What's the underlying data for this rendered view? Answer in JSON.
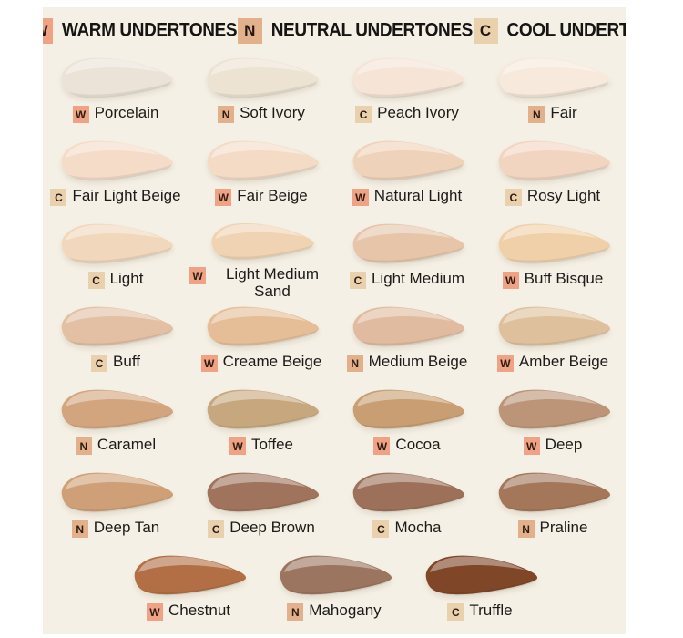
{
  "page": {
    "background": "#ffffff",
    "panel_background": "#f5f0e5",
    "text_color": "#1c1b19"
  },
  "badge_colors": {
    "W": "#f0a285",
    "N": "#e3b08c",
    "C": "#ead1ad"
  },
  "header": {
    "items": [
      {
        "badge": "W",
        "label": "WARM UNDERTONES"
      },
      {
        "badge": "N",
        "label": "NEUTRAL UNDERTONES"
      },
      {
        "badge": "C",
        "label": "COOL UNDERTONES"
      }
    ]
  },
  "rows": [
    {
      "cells": [
        {
          "badge": "W",
          "name": "Porcelain",
          "color": "#ebe3d8"
        },
        {
          "badge": "N",
          "name": "Soft Ivory",
          "color": "#ece3d2"
        },
        {
          "badge": "C",
          "name": "Peach Ivory",
          "color": "#f6e4d6"
        },
        {
          "badge": "N",
          "name": "Fair",
          "color": "#f7e9db"
        }
      ]
    },
    {
      "cells": [
        {
          "badge": "C",
          "name": "Fair Light Beige",
          "color": "#f5dcc8"
        },
        {
          "badge": "W",
          "name": "Fair Beige",
          "color": "#f3dbc5"
        },
        {
          "badge": "W",
          "name": "Natural Light",
          "color": "#efd2ba"
        },
        {
          "badge": "C",
          "name": "Rosy Light",
          "color": "#f1d5c1"
        }
      ]
    },
    {
      "cells": [
        {
          "badge": "C",
          "name": "Light",
          "color": "#f1d7bc"
        },
        {
          "badge": "W",
          "name": "Light Medium Sand",
          "color": "#f0d3b3"
        },
        {
          "badge": "C",
          "name": "Light Medium",
          "color": "#e6c5a9"
        },
        {
          "badge": "W",
          "name": "Buff Bisque",
          "color": "#efd0a9"
        }
      ]
    },
    {
      "cells": [
        {
          "badge": "C",
          "name": "Buff",
          "color": "#e3bfa4"
        },
        {
          "badge": "W",
          "name": "Creame Beige",
          "color": "#e5be98"
        },
        {
          "badge": "N",
          "name": "Medium Beige",
          "color": "#e1bb9f"
        },
        {
          "badge": "W",
          "name": "Amber Beige",
          "color": "#dec19c"
        }
      ]
    },
    {
      "cells": [
        {
          "badge": "N",
          "name": "Caramel",
          "color": "#d3a57f"
        },
        {
          "badge": "W",
          "name": "Toffee",
          "color": "#c7a87e"
        },
        {
          "badge": "W",
          "name": "Cocoa",
          "color": "#c89e72"
        },
        {
          "badge": "W",
          "name": "Deep",
          "color": "#bc9578"
        }
      ]
    },
    {
      "cells": [
        {
          "badge": "N",
          "name": "Deep Tan",
          "color": "#cfa077"
        },
        {
          "badge": "C",
          "name": "Deep Brown",
          "color": "#a0745c"
        },
        {
          "badge": "C",
          "name": "Mocha",
          "color": "#9d7159"
        },
        {
          "badge": "N",
          "name": "Praline",
          "color": "#a4775b"
        }
      ]
    },
    {
      "cells": [
        {
          "badge": "W",
          "name": "Chestnut",
          "color": "#b26f45"
        },
        {
          "badge": "N",
          "name": "Mahogany",
          "color": "#9b7560"
        },
        {
          "badge": "C",
          "name": "Truffle",
          "color": "#7f4627"
        }
      ]
    }
  ]
}
